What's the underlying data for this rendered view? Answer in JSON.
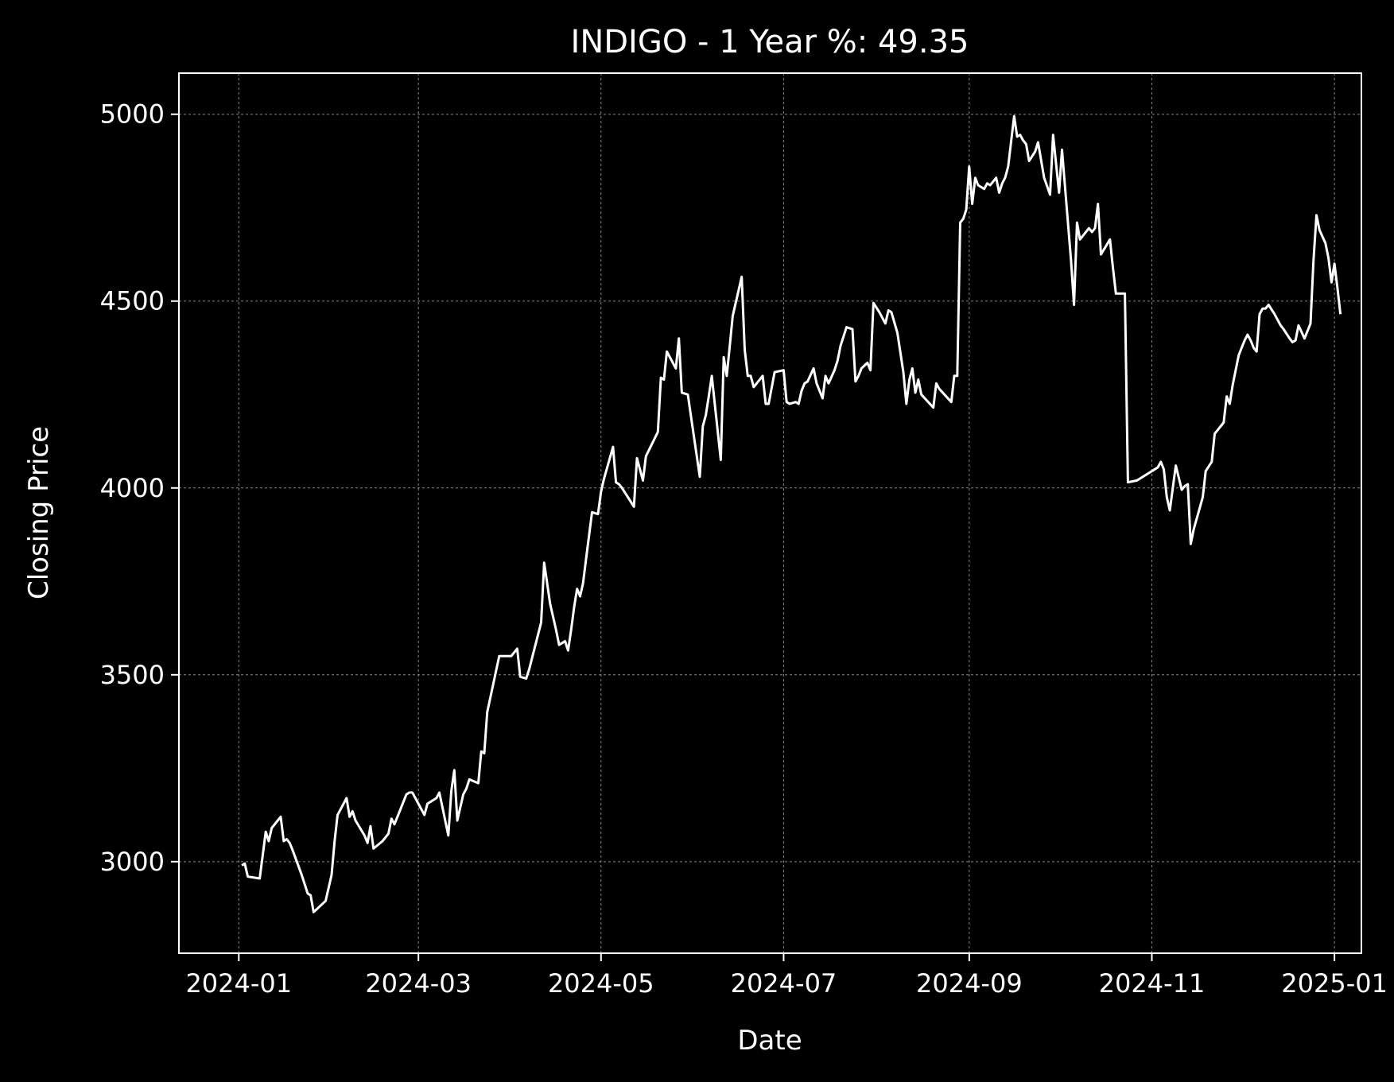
{
  "chart_data": {
    "type": "line",
    "title": "INDIGO - 1 Year %: 49.35",
    "xlabel": "Date",
    "ylabel": "Closing Price",
    "xlim": [
      "2023-12-12",
      "2025-01-10"
    ],
    "ylim": [
      2755,
      5110
    ],
    "grid": true,
    "legend": "none",
    "colors": {
      "background": "#000000",
      "line": "#ffffff",
      "grid": "#888888",
      "text": "#ffffff"
    },
    "x_ticks": [
      "2024-01",
      "2024-03",
      "2024-05",
      "2024-07",
      "2024-09",
      "2024-11",
      "2025-01"
    ],
    "x_tick_dates": [
      "2024-01-01",
      "2024-03-01",
      "2024-05-01",
      "2024-07-01",
      "2024-09-01",
      "2024-11-01",
      "2025-01-01"
    ],
    "y_ticks": [
      "3000",
      "3500",
      "4000",
      "4500",
      "5000"
    ],
    "y_tick_values": [
      3000,
      3500,
      4000,
      4500,
      5000
    ],
    "series": [
      {
        "x": [
          "2024-01-02",
          "2024-01-03",
          "2024-01-04",
          "2024-01-08",
          "2024-01-10",
          "2024-01-11",
          "2024-01-12",
          "2024-01-15",
          "2024-01-16",
          "2024-01-17",
          "2024-01-18",
          "2024-01-19",
          "2024-01-22",
          "2024-01-24",
          "2024-01-25",
          "2024-01-26",
          "2024-01-30",
          "2024-02-01",
          "2024-02-02",
          "2024-02-03",
          "2024-02-06",
          "2024-02-07",
          "2024-02-08",
          "2024-02-09",
          "2024-02-12",
          "2024-02-13",
          "2024-02-14",
          "2024-02-15",
          "2024-02-18",
          "2024-02-19",
          "2024-02-20",
          "2024-02-21",
          "2024-02-22",
          "2024-02-26",
          "2024-02-27",
          "2024-02-28",
          "2024-03-03",
          "2024-03-04",
          "2024-03-07",
          "2024-03-08",
          "2024-03-11",
          "2024-03-12",
          "2024-03-13",
          "2024-03-14",
          "2024-03-16",
          "2024-03-17",
          "2024-03-18",
          "2024-03-21",
          "2024-03-22",
          "2024-03-23",
          "2024-03-24",
          "2024-03-28",
          "2024-03-30",
          "2024-03-31",
          "2024-04-01",
          "2024-04-03",
          "2024-04-04",
          "2024-04-06",
          "2024-04-07",
          "2024-04-11",
          "2024-04-12",
          "2024-04-14",
          "2024-04-16",
          "2024-04-17",
          "2024-04-19",
          "2024-04-20",
          "2024-04-21",
          "2024-04-22",
          "2024-04-23",
          "2024-04-24",
          "2024-04-25",
          "2024-04-26",
          "2024-04-28",
          "2024-04-30",
          "2024-05-01",
          "2024-05-02",
          "2024-05-05",
          "2024-05-06",
          "2024-05-07",
          "2024-05-08",
          "2024-05-12",
          "2024-05-13",
          "2024-05-14",
          "2024-05-15",
          "2024-05-16",
          "2024-05-20",
          "2024-05-21",
          "2024-05-22",
          "2024-05-23",
          "2024-05-26",
          "2024-05-27",
          "2024-05-28",
          "2024-05-30",
          "2024-05-31",
          "2024-06-03",
          "2024-06-04",
          "2024-06-05",
          "2024-06-06",
          "2024-06-07",
          "2024-06-10",
          "2024-06-11",
          "2024-06-12",
          "2024-06-13",
          "2024-06-14",
          "2024-06-17",
          "2024-06-18",
          "2024-06-19",
          "2024-06-20",
          "2024-06-21",
          "2024-06-24",
          "2024-06-25",
          "2024-06-26",
          "2024-06-28",
          "2024-07-01",
          "2024-07-02",
          "2024-07-03",
          "2024-07-05",
          "2024-07-06",
          "2024-07-07",
          "2024-07-08",
          "2024-07-09",
          "2024-07-11",
          "2024-07-12",
          "2024-07-14",
          "2024-07-15",
          "2024-07-16",
          "2024-07-18",
          "2024-07-19",
          "2024-07-20",
          "2024-07-22",
          "2024-07-24",
          "2024-07-25",
          "2024-07-26",
          "2024-07-27",
          "2024-07-29",
          "2024-07-30",
          "2024-07-31",
          "2024-08-02",
          "2024-08-04",
          "2024-08-05",
          "2024-08-06",
          "2024-08-08",
          "2024-08-10",
          "2024-08-11",
          "2024-08-12",
          "2024-08-13",
          "2024-08-14",
          "2024-08-15",
          "2024-08-16",
          "2024-08-20",
          "2024-08-21",
          "2024-08-22",
          "2024-08-26",
          "2024-08-27",
          "2024-08-28",
          "2024-08-29",
          "2024-08-30",
          "2024-08-31",
          "2024-09-01",
          "2024-09-02",
          "2024-09-03",
          "2024-09-04",
          "2024-09-06",
          "2024-09-07",
          "2024-09-08",
          "2024-09-10",
          "2024-09-11",
          "2024-09-12",
          "2024-09-13",
          "2024-09-14",
          "2024-09-16",
          "2024-09-17",
          "2024-09-18",
          "2024-09-19",
          "2024-09-20",
          "2024-09-21",
          "2024-09-23",
          "2024-09-24",
          "2024-09-26",
          "2024-09-28",
          "2024-09-29",
          "2024-10-01",
          "2024-10-02",
          "2024-10-05",
          "2024-10-06",
          "2024-10-07",
          "2024-10-08",
          "2024-10-11",
          "2024-10-12",
          "2024-10-13",
          "2024-10-14",
          "2024-10-15",
          "2024-10-18",
          "2024-10-19",
          "2024-10-20",
          "2024-10-23",
          "2024-10-24",
          "2024-10-27",
          "2024-11-02",
          "2024-11-03",
          "2024-11-04",
          "2024-11-05",
          "2024-11-06",
          "2024-11-07",
          "2024-11-09",
          "2024-11-11",
          "2024-11-12",
          "2024-11-13",
          "2024-11-14",
          "2024-11-15",
          "2024-11-18",
          "2024-11-19",
          "2024-11-21",
          "2024-11-22",
          "2024-11-25",
          "2024-11-26",
          "2024-11-27",
          "2024-11-28",
          "2024-11-30",
          "2024-12-01",
          "2024-12-02",
          "2024-12-03",
          "2024-12-04",
          "2024-12-05",
          "2024-12-06",
          "2024-12-07",
          "2024-12-08",
          "2024-12-09",
          "2024-12-10",
          "2024-12-12",
          "2024-12-14",
          "2024-12-15",
          "2024-12-17",
          "2024-12-18",
          "2024-12-19",
          "2024-12-20",
          "2024-12-22",
          "2024-12-24",
          "2024-12-25",
          "2024-12-26",
          "2024-12-27",
          "2024-12-29",
          "2024-12-30",
          "2024-12-31",
          "2025-01-01",
          "2025-01-02",
          "2025-01-03"
        ],
        "y": [
          2990,
          2995,
          2960,
          2955,
          3080,
          3055,
          3090,
          3120,
          3055,
          3060,
          3050,
          3030,
          2965,
          2915,
          2910,
          2865,
          2895,
          2965,
          3055,
          3125,
          3170,
          3120,
          3135,
          3110,
          3070,
          3050,
          3095,
          3035,
          3055,
          3065,
          3075,
          3115,
          3100,
          3180,
          3185,
          3185,
          3125,
          3155,
          3170,
          3185,
          3070,
          3190,
          3245,
          3110,
          3180,
          3195,
          3220,
          3210,
          3295,
          3290,
          3400,
          3550,
          3550,
          3550,
          3550,
          3570,
          3495,
          3490,
          3515,
          3640,
          3800,
          3690,
          3620,
          3580,
          3590,
          3565,
          3620,
          3680,
          3730,
          3710,
          3745,
          3810,
          3935,
          3930,
          3990,
          4025,
          4110,
          4015,
          4010,
          4000,
          3950,
          4080,
          4050,
          4020,
          4085,
          4150,
          4295,
          4290,
          4365,
          4320,
          4400,
          4255,
          4250,
          4195,
          4030,
          4165,
          4195,
          4245,
          4300,
          4075,
          4350,
          4300,
          4380,
          4460,
          4565,
          4370,
          4300,
          4300,
          4270,
          4300,
          4225,
          4225,
          4310,
          4315,
          4230,
          4225,
          4230,
          4225,
          4260,
          4280,
          4285,
          4320,
          4280,
          4240,
          4300,
          4280,
          4315,
          4340,
          4380,
          4430,
          4425,
          4285,
          4300,
          4320,
          4335,
          4315,
          4495,
          4470,
          4440,
          4475,
          4470,
          4415,
          4310,
          4225,
          4290,
          4320,
          4255,
          4290,
          4250,
          4215,
          4280,
          4265,
          4230,
          4300,
          4300,
          4710,
          4720,
          4745,
          4860,
          4760,
          4830,
          4810,
          4800,
          4815,
          4810,
          4830,
          4790,
          4815,
          4830,
          4860,
          4995,
          4940,
          4945,
          4930,
          4920,
          4875,
          4900,
          4925,
          4830,
          4785,
          4945,
          4790,
          4905,
          4610,
          4490,
          4710,
          4665,
          4695,
          4685,
          4695,
          4760,
          4625,
          4665,
          4590,
          4520,
          4520,
          4015,
          4020,
          4050,
          4055,
          4070,
          4050,
          3975,
          3940,
          4060,
          3995,
          4005,
          4010,
          3850,
          3890,
          3975,
          4045,
          4070,
          4145,
          4175,
          4245,
          4225,
          4275,
          4355,
          4375,
          4395,
          4410,
          4395,
          4375,
          4365,
          4465,
          4480,
          4480,
          4490,
          4465,
          4435,
          4425,
          4400,
          4390,
          4395,
          4435,
          4400,
          4440,
          4610,
          4730,
          4690,
          4655,
          4615,
          4550,
          4600,
          4535,
          4465
        ]
      }
    ]
  }
}
